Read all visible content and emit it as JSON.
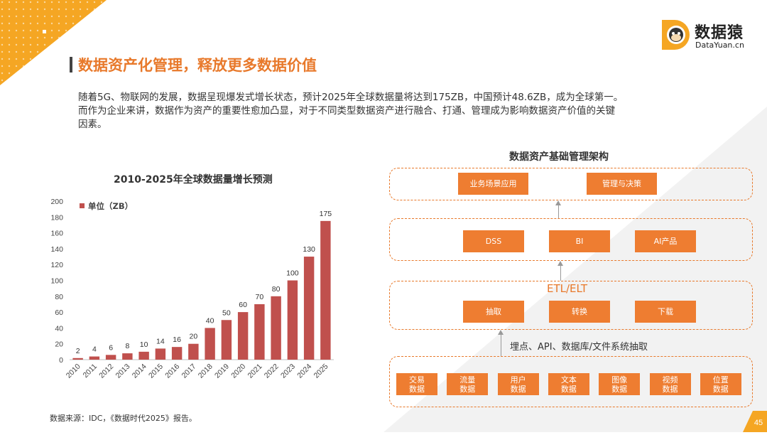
{
  "header": {
    "title": "数据资产化管理，释放更多数据价值",
    "intro_line1": "随着5G、物联网的发展，数据呈现爆发式增长状态，预计2025年全球数据量将达到175ZB，中国预计48.6ZB，成为全球第一。",
    "intro_line2": "而作为企业来讲，数据作为资产的重要性愈加凸显，对于不同类型数据资产进行融合、打通、管理成为影响数据资产价值的关键",
    "intro_line3": "因素。"
  },
  "logo": {
    "name": "数据猿",
    "url": "DataYuan.cn"
  },
  "chart_data": {
    "type": "bar",
    "title": "2010-2025年全球数据量增长预测",
    "categories": [
      "2010",
      "2011",
      "2012",
      "2013",
      "2014",
      "2015",
      "2016",
      "2017",
      "2018",
      "2019",
      "2020",
      "2021",
      "2022",
      "2023",
      "2024",
      "2025"
    ],
    "series": [
      {
        "name": "单位（ZB）",
        "values": [
          2,
          4,
          6,
          8,
          10,
          14,
          16,
          20,
          40,
          50,
          60,
          70,
          80,
          100,
          130,
          175
        ]
      }
    ],
    "ylim": [
      0,
      200
    ],
    "yticks": [
      0,
      20,
      40,
      60,
      80,
      100,
      120,
      140,
      160,
      180,
      200
    ],
    "legend_position": "top-left",
    "color": "#C0504D"
  },
  "architecture": {
    "title": "数据资产基础管理架构",
    "app_layer": [
      "业务场景应用",
      "管理与决策"
    ],
    "analysis_layer": [
      "DSS",
      "BI",
      "AI产品"
    ],
    "etl_label": "ETL/ELT",
    "etl_layer": [
      "抽取",
      "转换",
      "下载"
    ],
    "extract_label": "埋点、API、数据库/文件系统抽取",
    "source_layer": [
      [
        "交易",
        "数据"
      ],
      [
        "流量",
        "数据"
      ],
      [
        "用户",
        "数据"
      ],
      [
        "文本",
        "数据"
      ],
      [
        "图像",
        "数据"
      ],
      [
        "视频",
        "数据"
      ],
      [
        "位置",
        "数据"
      ]
    ]
  },
  "footer": {
    "source": "数据来源：IDC，《数据时代2025》报告。",
    "page": "45"
  }
}
